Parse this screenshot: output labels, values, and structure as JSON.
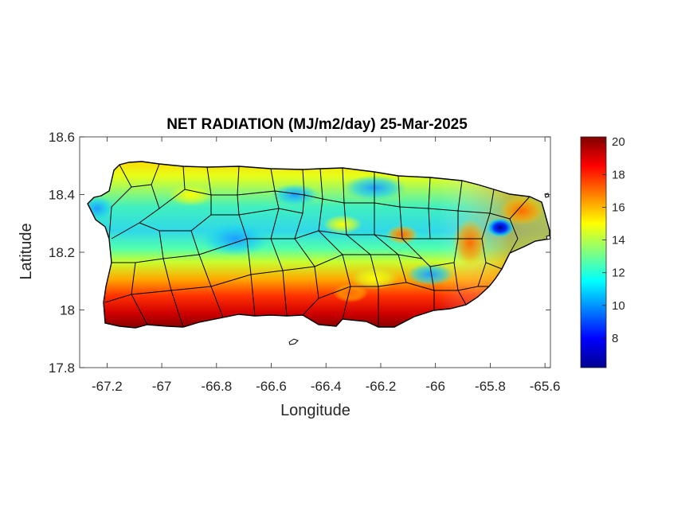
{
  "map": {
    "title": "NET RADIATION (MJ/m2/day) 25-Mar-2025",
    "x_label": "Longitude",
    "y_label": "Latitude",
    "x_range": [
      -67.3,
      -65.58
    ],
    "y_range": [
      17.8,
      18.6
    ],
    "x_ticks": [
      {
        "value": -67.2,
        "label": "-67.2"
      },
      {
        "value": -67.0,
        "label": "-67"
      },
      {
        "value": -66.8,
        "label": "-66.8"
      },
      {
        "value": -66.6,
        "label": "-66.6"
      },
      {
        "value": -66.4,
        "label": "-66.4"
      },
      {
        "value": -66.2,
        "label": "-66.2"
      },
      {
        "value": -66.0,
        "label": "-66"
      },
      {
        "value": -65.8,
        "label": "-65.8"
      },
      {
        "value": -65.6,
        "label": "-65.6"
      }
    ],
    "y_ticks": [
      {
        "value": 17.8,
        "label": "17.8"
      },
      {
        "value": 18.0,
        "label": "18"
      },
      {
        "value": 18.2,
        "label": "18.2"
      },
      {
        "value": 18.4,
        "label": "18.4"
      },
      {
        "value": 18.6,
        "label": "18.6"
      }
    ],
    "colorbar": {
      "colormap": "jet",
      "range": [
        6.2,
        20.3
      ],
      "ticks": [
        {
          "value": 8,
          "label": "8"
        },
        {
          "value": 10,
          "label": "10"
        },
        {
          "value": 12,
          "label": "12"
        },
        {
          "value": 14,
          "label": "14"
        },
        {
          "value": 16,
          "label": "16"
        },
        {
          "value": 18,
          "label": "18"
        },
        {
          "value": 20,
          "label": "20"
        }
      ],
      "colors": [
        "#00008f",
        "#0000ff",
        "#00ffff",
        "#ffff00",
        "#ff0000",
        "#800000"
      ]
    },
    "colors": {
      "axes": "#262626",
      "island_outline": "#000000",
      "south_coast": "#8b0000",
      "north_interior": "#40e0d0"
    }
  }
}
